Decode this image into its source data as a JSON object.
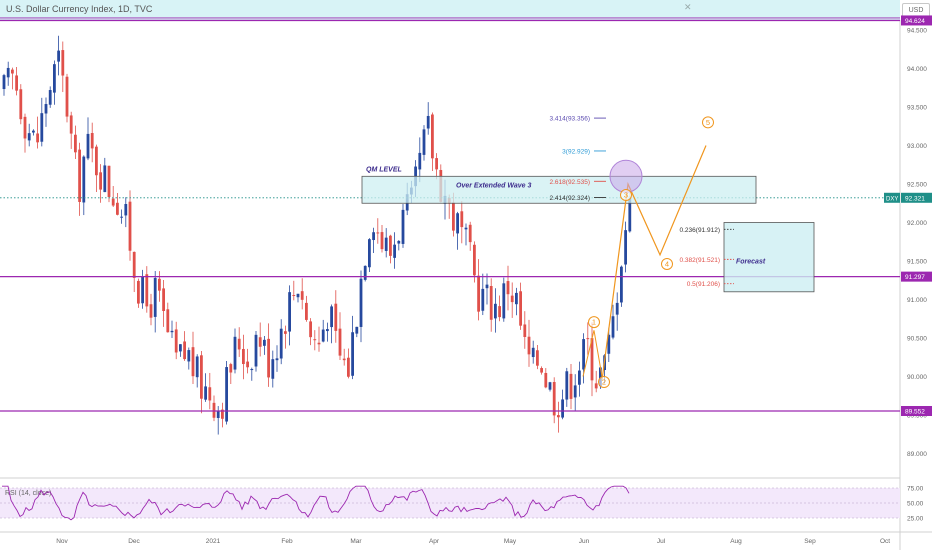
{
  "header": {
    "title": "U.S. Dollar Currency Index, 1D, TVC",
    "currency": "USD",
    "close_icon": "close-icon"
  },
  "chart_data": {
    "type": "candlestick",
    "symbol": "DXY",
    "last_price": "92.321",
    "yticks": [
      89.0,
      89.5,
      90.0,
      90.5,
      91.0,
      91.5,
      92.0,
      92.5,
      93.0,
      93.5,
      94.0,
      94.5
    ],
    "ytick_labels": [
      "89.000",
      "89.500",
      "90.000",
      "90.500",
      "91.000",
      "91.500",
      "92.000",
      "92.500",
      "93.000",
      "93.500",
      "94.000",
      "94.500"
    ],
    "xtick_labels": [
      "Nov",
      "Dec",
      "2021",
      "Feb",
      "Mar",
      "Apr",
      "May",
      "Jun",
      "Jul",
      "Aug",
      "Sep",
      "Oct"
    ],
    "horizontal_levels": [
      {
        "value": 94.624,
        "label": "94.624"
      },
      {
        "value": 91.297,
        "label": "91.297"
      },
      {
        "value": 89.552,
        "label": "89.552"
      }
    ],
    "price_line": {
      "value": 92.321,
      "label": "92.321",
      "name": "DXY"
    },
    "qm_zone": {
      "top": 92.6,
      "bottom": 92.25,
      "label": "QM LEVEL",
      "note": "Over Extended Wave 3"
    },
    "fib_extensions": [
      {
        "label": "3.414(93.356)",
        "value": 93.356,
        "color": "#5b4bb0"
      },
      {
        "label": "3(92.929)",
        "value": 92.929,
        "color": "#2e9bd6"
      },
      {
        "label": "2.618(92.535)",
        "value": 92.535,
        "color": "#e0504a"
      },
      {
        "label": "2.414(92.324)",
        "value": 92.324,
        "color": "#333333"
      }
    ],
    "fib_retracements": [
      {
        "label": "0.236(91.912)",
        "value": 91.912,
        "color": "#333333"
      },
      {
        "label": "0.382(91.521)",
        "value": 91.521,
        "color": "#e0504a"
      },
      {
        "label": "0.5(91.206)",
        "value": 91.206,
        "color": "#e0504a"
      }
    ],
    "forecast_label": "Forecast",
    "waves": [
      {
        "label": "1",
        "value": 90.68
      },
      {
        "label": "2",
        "value": 89.85
      },
      {
        "label": "3",
        "value": 92.5
      },
      {
        "label": "4",
        "value": 91.5
      },
      {
        "label": "5",
        "value": 93.3
      }
    ],
    "rsi": {
      "label": "RSI (14, close)",
      "ticks": [
        75.0,
        50.0,
        25.0
      ],
      "tick_labels": [
        "75.00",
        "50.00",
        "25.00"
      ]
    },
    "colors": {
      "up": "#26499e",
      "down": "#e0504a",
      "level": "#9c27b0",
      "wave": "#f0961e",
      "zone": "#cdeff2",
      "rsi": "#9c27b0"
    }
  }
}
